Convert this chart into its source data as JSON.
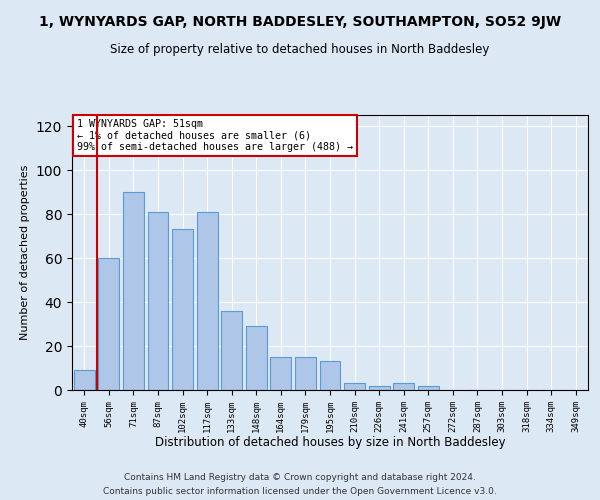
{
  "title": "1, WYNYARDS GAP, NORTH BADDESLEY, SOUTHAMPTON, SO52 9JW",
  "subtitle": "Size of property relative to detached houses in North Baddesley",
  "xlabel": "Distribution of detached houses by size in North Baddesley",
  "ylabel": "Number of detached properties",
  "bar_labels": [
    "40sqm",
    "56sqm",
    "71sqm",
    "87sqm",
    "102sqm",
    "117sqm",
    "133sqm",
    "148sqm",
    "164sqm",
    "179sqm",
    "195sqm",
    "210sqm",
    "226sqm",
    "241sqm",
    "257sqm",
    "272sqm",
    "287sqm",
    "303sqm",
    "318sqm",
    "334sqm",
    "349sqm"
  ],
  "bar_values": [
    9,
    60,
    90,
    81,
    73,
    81,
    36,
    29,
    15,
    15,
    13,
    3,
    2,
    3,
    2,
    0,
    0,
    0,
    0,
    0,
    0
  ],
  "bar_color": "#aec6e8",
  "bar_edge_color": "#5b9bd5",
  "highlight_color": "#cc0000",
  "ylim": [
    0,
    125
  ],
  "annotation_text": "1 WYNYARDS GAP: 51sqm\n← 1% of detached houses are smaller (6)\n99% of semi-detached houses are larger (488) →",
  "annotation_box_color": "#ffffff",
  "annotation_box_edge": "#cc0000",
  "footer_line1": "Contains HM Land Registry data © Crown copyright and database right 2024.",
  "footer_line2": "Contains public sector information licensed under the Open Government Licence v3.0.",
  "bg_color": "#dde8f5",
  "plot_bg_color": "#dde8f5"
}
